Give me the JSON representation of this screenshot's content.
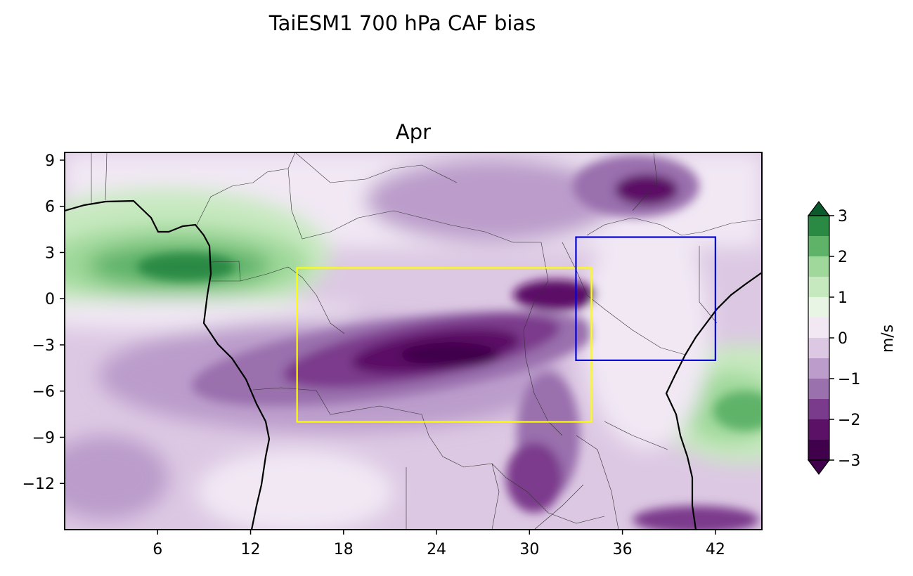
{
  "figure": {
    "suptitle": "TaiESM1 700 hPa CAF bias"
  },
  "chart_data": {
    "type": "heatmap",
    "title": "Apr",
    "variable": "700 hPa CAF bias",
    "units": "m/s",
    "xlim": [
      0,
      45
    ],
    "ylim": [
      -15,
      9.5
    ],
    "xticks": [
      6,
      12,
      18,
      24,
      30,
      36,
      42
    ],
    "yticks": [
      9,
      6,
      3,
      0,
      -3,
      -6,
      -9,
      -12
    ],
    "colorbar": {
      "label": "m/s",
      "levels": [
        -3,
        -2.5,
        -2,
        -1.5,
        -1,
        -0.5,
        0,
        0.5,
        1,
        1.5,
        2,
        2.5,
        3
      ],
      "ticks": [
        3,
        2,
        1,
        0,
        -1,
        -2,
        -3
      ],
      "colors": [
        "#40004b",
        "#5b1166",
        "#7b3b8c",
        "#9a70ad",
        "#bb9ccb",
        "#dcc8e3",
        "#f1e8f4",
        "#e8f5e4",
        "#c7e9c0",
        "#9fd89a",
        "#5fb369",
        "#2a8a44",
        "#0b5a2b"
      ],
      "extend": "both"
    },
    "boxes": [
      {
        "color": "#ffff00",
        "lon": [
          15,
          34
        ],
        "lat": [
          -8,
          2
        ]
      },
      {
        "color": "#0000dd",
        "lon": [
          33,
          42
        ],
        "lat": [
          -4,
          4
        ]
      }
    ],
    "anomaly_centers": [
      {
        "lon": 7.5,
        "lat": 2,
        "value": 2.7
      },
      {
        "lon": 24,
        "lat": -4,
        "value": -3.1
      },
      {
        "lon": 43,
        "lat": -7,
        "value": 1.8
      },
      {
        "lon": 30,
        "lat": -12,
        "value": -2.6
      },
      {
        "lon": 37,
        "lat": 8,
        "value": -2.8
      }
    ]
  }
}
